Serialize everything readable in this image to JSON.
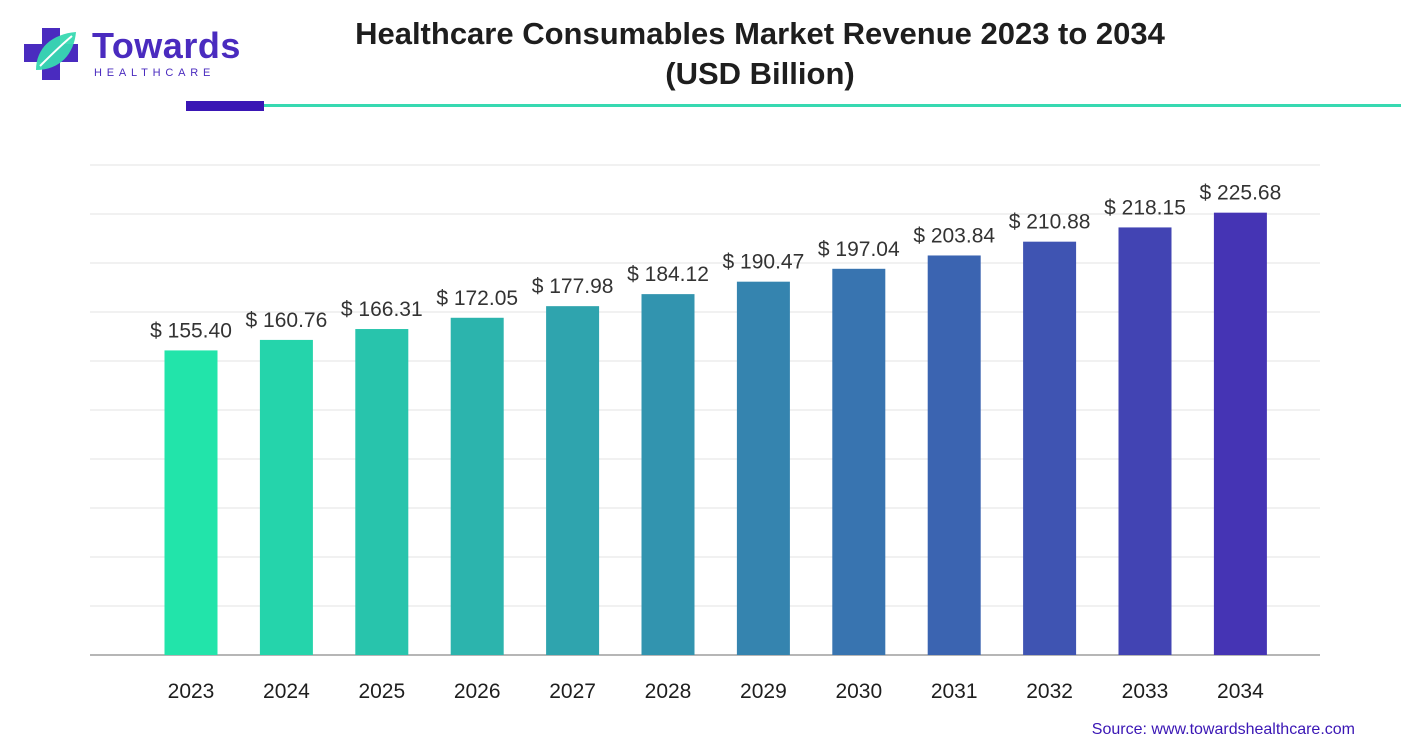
{
  "brand": {
    "name": "Towards",
    "sub": "HEALTHCARE"
  },
  "chart_title_line1": "Healthcare Consumables Market Revenue 2023 to 2034",
  "chart_title_line2": "(USD Billion)",
  "source": "Source: www.towardshealthcare.com",
  "colors": {
    "accent_dark": "#3a16b5",
    "accent_teal": "#37d9b1",
    "bar_start": "#22e4aa",
    "bar_end": "#4534b4"
  },
  "chart_data": {
    "type": "bar",
    "title": "Healthcare Consumables Market Revenue 2023 to 2034 (USD Billion)",
    "categories": [
      "2023",
      "2024",
      "2025",
      "2026",
      "2027",
      "2028",
      "2029",
      "2030",
      "2031",
      "2032",
      "2033",
      "2034"
    ],
    "values": [
      155.4,
      160.76,
      166.31,
      172.05,
      177.98,
      184.12,
      190.47,
      197.04,
      203.84,
      210.88,
      218.15,
      225.68
    ],
    "value_labels": [
      "$ 155.40",
      "$ 160.76",
      "$ 166.31",
      "$ 172.05",
      "$ 177.98",
      "$ 184.12",
      "$ 190.47",
      "$ 197.04",
      "$ 203.84",
      "$ 210.88",
      "$ 218.15",
      "$ 225.68"
    ],
    "xlabel": "",
    "ylabel": "",
    "ylim": [
      0,
      250
    ],
    "grid": true,
    "legend": "none"
  }
}
